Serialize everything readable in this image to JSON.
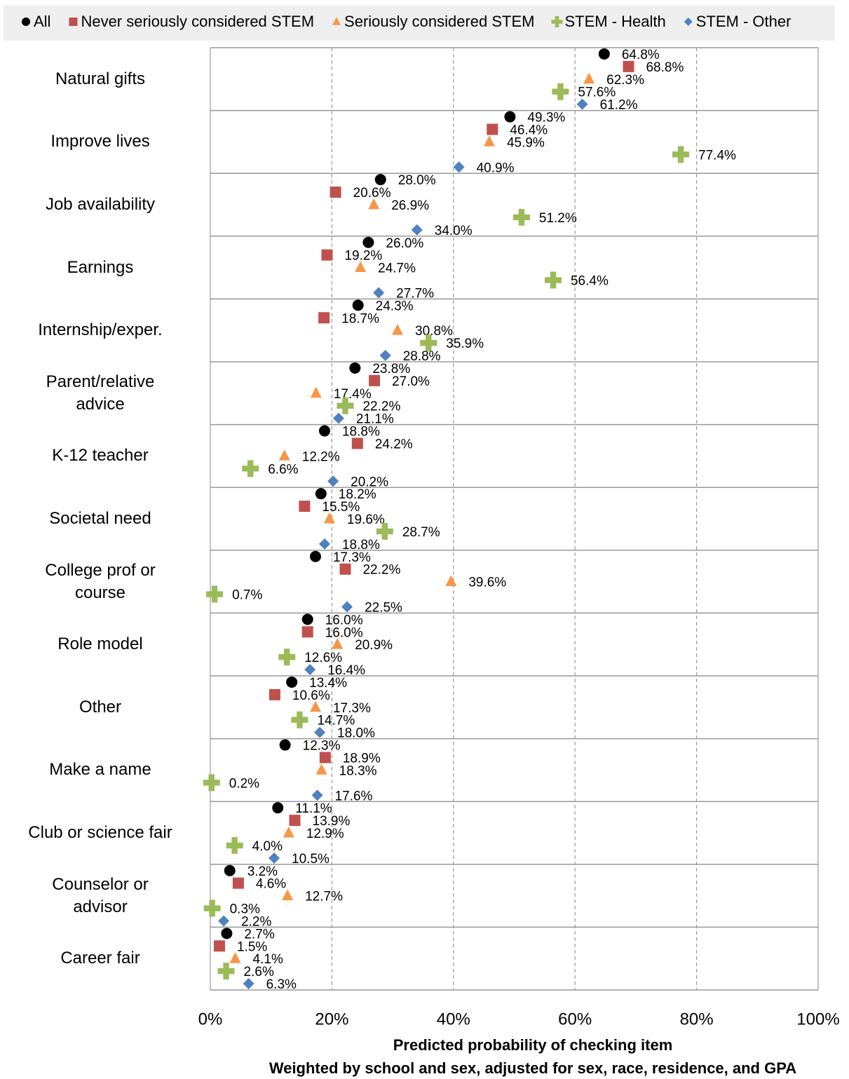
{
  "chart_data": {
    "type": "dot",
    "x_label": "Predicted probability of checking item",
    "subtitle": "Weighted by school and sex, adjusted for sex, race, residence, and GPA",
    "categories": [
      "Natural gifts",
      "Improve lives",
      "Job availability",
      "Earnings",
      "Internship/exper.",
      "Parent/relative\nadvice",
      "K-12 teacher",
      "Societal need",
      "College prof or\ncourse",
      "Role model",
      "Other",
      "Make a name",
      "Club or science fair",
      "Counselor or\nadvisor",
      "Career fair"
    ],
    "series": [
      {
        "name": "All",
        "color": "#000000",
        "marker": "circle",
        "values": [
          64.8,
          49.3,
          28.0,
          26.0,
          24.3,
          23.8,
          18.8,
          18.2,
          17.3,
          16.0,
          13.4,
          12.3,
          11.1,
          3.2,
          2.7
        ],
        "value_labels": [
          "64.8%",
          "49.3%",
          "28.0%",
          "26.0%",
          "24.3%",
          "23.8%",
          "18.8%",
          "18.2%",
          "17.3%",
          "16.0%",
          "13.4%",
          "12.3%",
          "11.1%",
          "3.2%",
          "2.7%"
        ]
      },
      {
        "name": "Never seriously considered STEM",
        "color": "#c0504d",
        "marker": "square",
        "values": [
          68.8,
          46.4,
          20.6,
          19.2,
          18.7,
          27.0,
          24.2,
          15.5,
          22.2,
          16.0,
          10.6,
          18.9,
          13.9,
          4.6,
          1.5
        ],
        "value_labels": [
          "68.8%",
          "46.4%",
          "20.6%",
          "19.2%",
          "18.7%",
          "27.0%",
          "24.2%",
          "15.5%",
          "22.2%",
          "16.0%",
          "10.6%",
          "18.9%",
          "13.9%",
          "4.6%",
          "1.5%"
        ]
      },
      {
        "name": "Seriously considered STEM",
        "color": "#f79646",
        "marker": "triangle",
        "values": [
          62.3,
          45.9,
          26.9,
          24.7,
          30.8,
          17.4,
          12.2,
          19.6,
          39.6,
          20.9,
          17.3,
          18.3,
          12.9,
          12.7,
          4.1
        ],
        "value_labels": [
          "62.3%",
          "45.9%",
          "26.9%",
          "24.7%",
          "30.8%",
          "17.4%",
          "12.2%",
          "19.6%",
          "39.6%",
          "20.9%",
          "17.3%",
          "18.3%",
          "12.9%",
          "12.7%",
          "4.1%"
        ]
      },
      {
        "name": "STEM - Health",
        "color": "#9bbb59",
        "marker": "plus",
        "values": [
          57.6,
          77.4,
          51.2,
          56.4,
          35.9,
          22.2,
          6.6,
          28.7,
          0.7,
          12.6,
          14.7,
          0.2,
          4.0,
          0.3,
          2.6
        ],
        "value_labels": [
          "57.6%",
          "77.4%",
          "51.2%",
          "56.4%",
          "35.9%",
          "22.2%",
          "6.6%",
          "28.7%",
          "0.7%",
          "12.6%",
          "14.7%",
          "0.2%",
          "4.0%",
          "0.3%",
          "2.6%"
        ]
      },
      {
        "name": "STEM - Other",
        "color": "#4f81bd",
        "marker": "diamond",
        "values": [
          61.2,
          40.9,
          34.0,
          27.7,
          28.8,
          21.1,
          20.2,
          18.8,
          22.5,
          16.4,
          18.0,
          17.6,
          10.5,
          2.2,
          6.3
        ],
        "value_labels": [
          "61.2%",
          "40.9%",
          "34.0%",
          "27.7%",
          "28.8%",
          "21.1%",
          "20.2%",
          "18.8%",
          "22.5%",
          "16.4%",
          "18.0%",
          "17.6%",
          "10.5%",
          "2.2%",
          "6.3%"
        ]
      }
    ],
    "xlim": [
      0,
      100
    ],
    "xticks": [
      {
        "value": 0,
        "label": "0%"
      },
      {
        "value": 20,
        "label": "20%"
      },
      {
        "value": 40,
        "label": "40%"
      },
      {
        "value": 60,
        "label": "60%"
      },
      {
        "value": 80,
        "label": "80%"
      },
      {
        "value": 100,
        "label": "100%"
      }
    ],
    "grid": true,
    "legend": "top"
  }
}
